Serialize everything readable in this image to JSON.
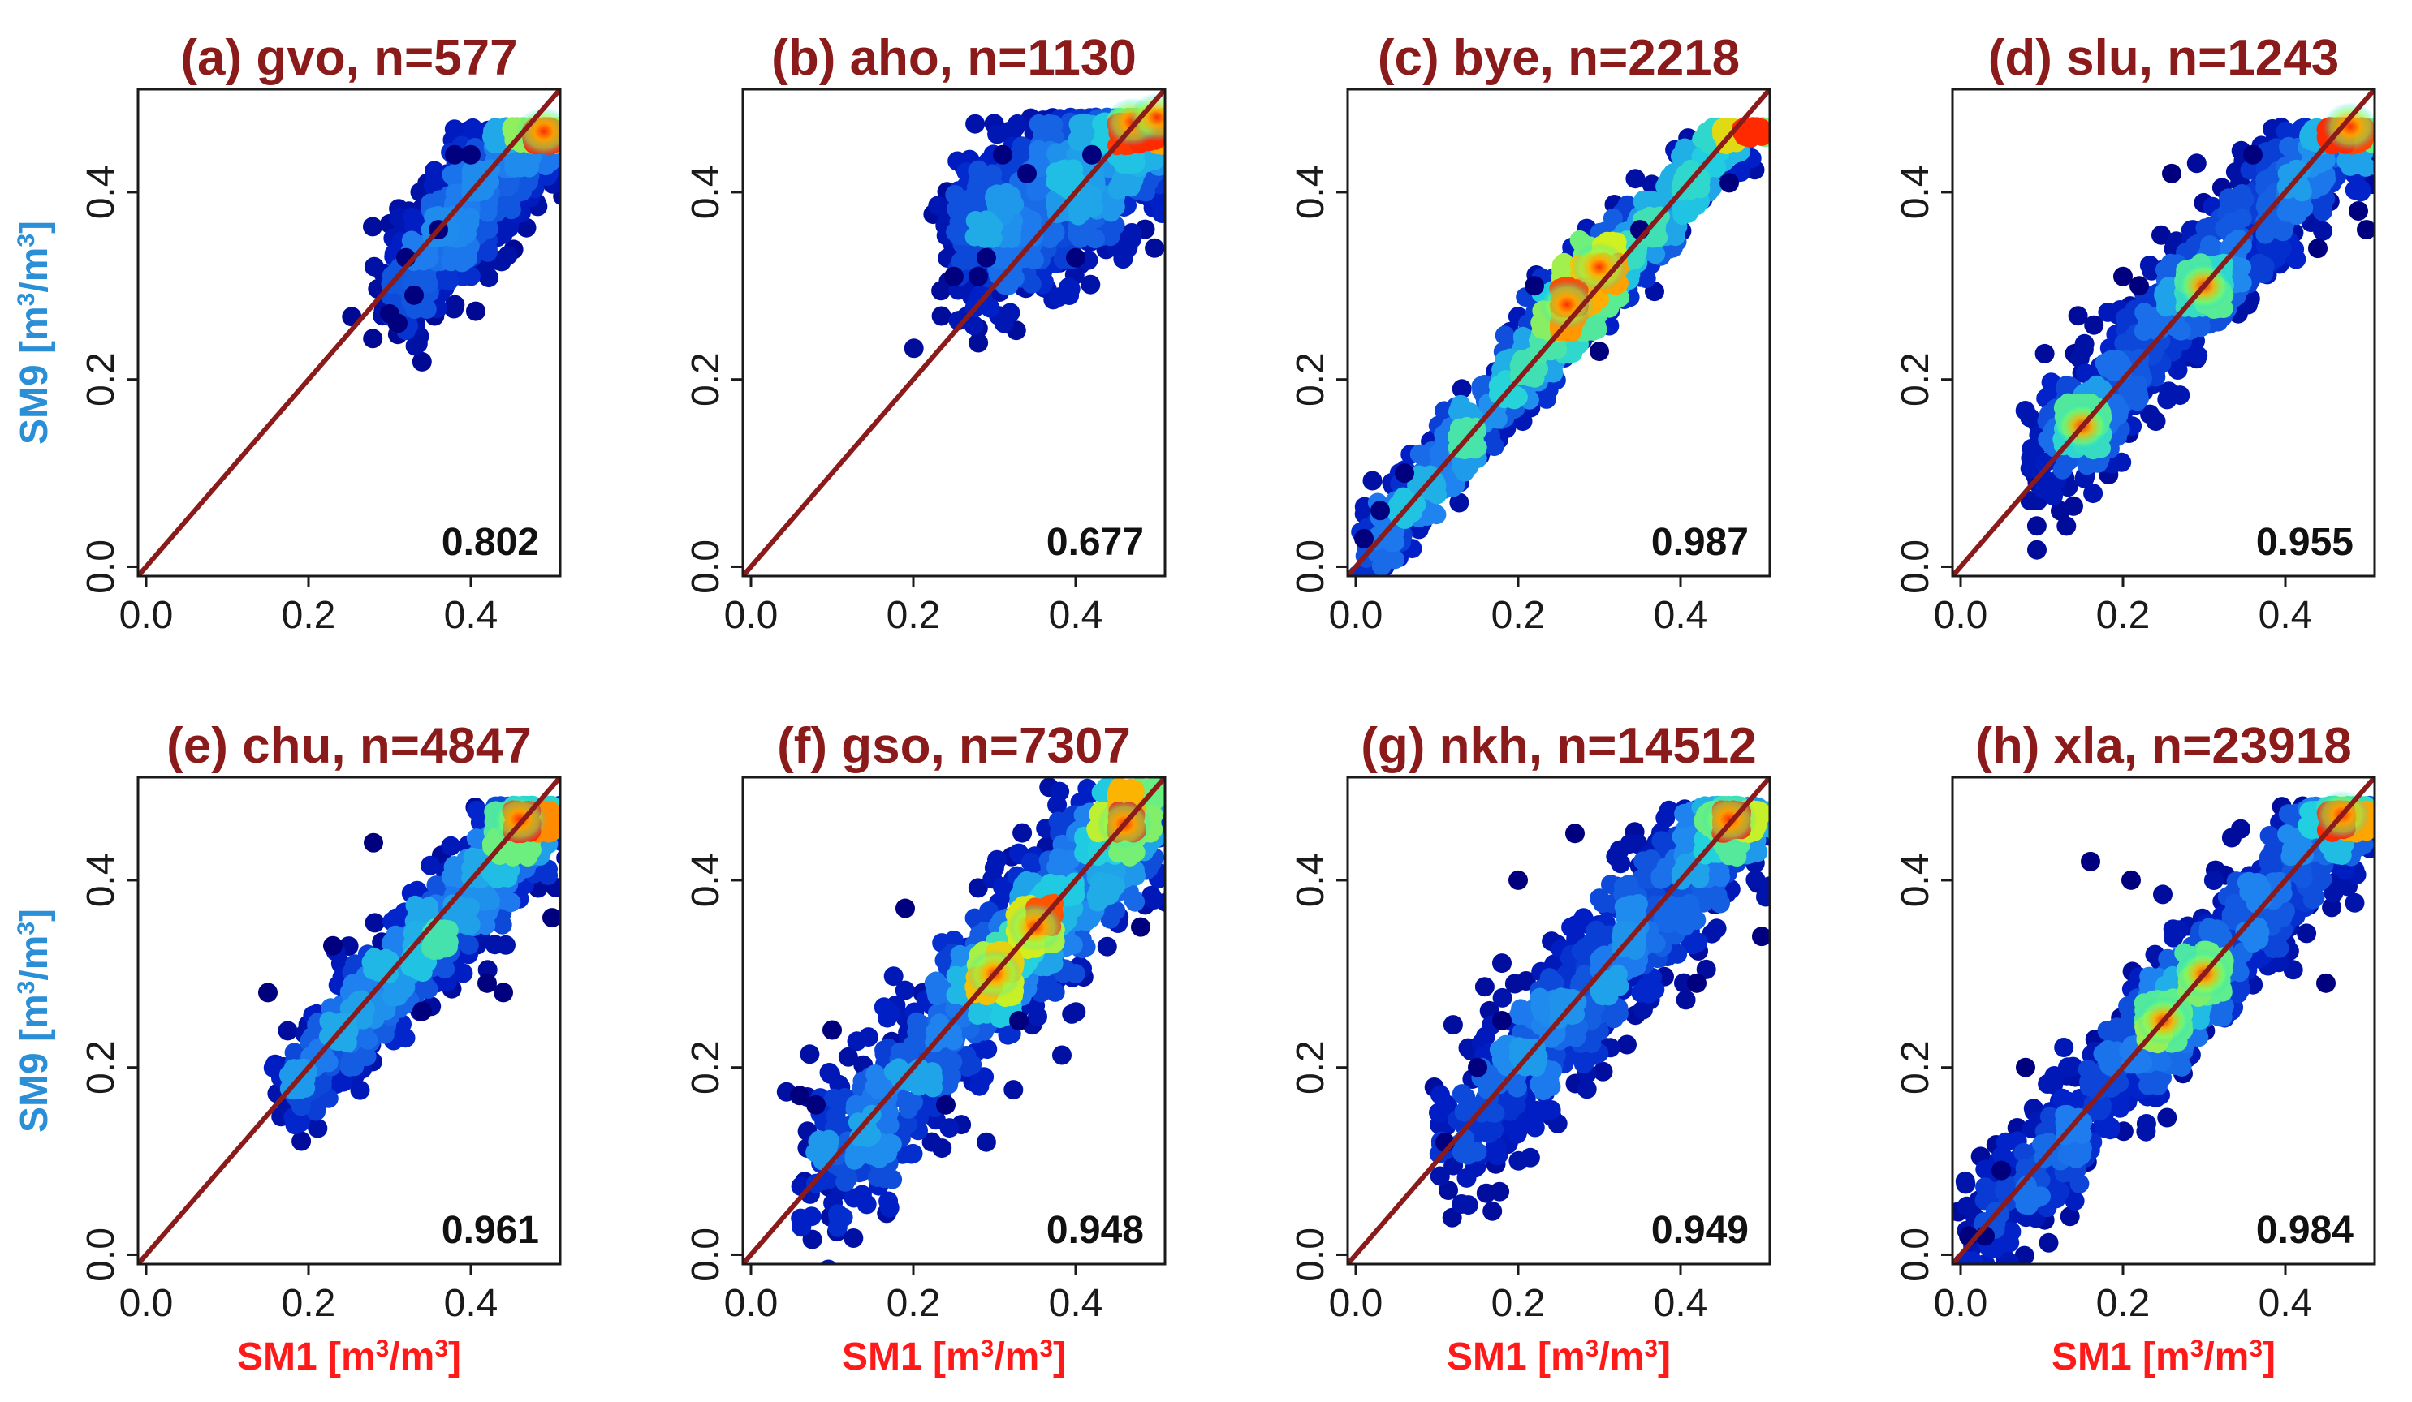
{
  "figure": {
    "xlabel_prefix": "SM1 [m",
    "ylabel_prefix": "SM9 [m",
    "unit_sup": "3",
    "unit_mid": "/m",
    "unit_end": "]"
  },
  "colors": {
    "title": "#8b1a1a",
    "one_to_one": "#8b1a1a",
    "xlabel": "#ff1a1a",
    "ylabel": "#2a8fd6",
    "axis": "#1a1a1a",
    "density_low": "#00007f",
    "density_high": "#ff2a00"
  },
  "chart_data": [
    {
      "type": "scatter",
      "title": "(a) gvo, n=577",
      "site": "gvo",
      "n": 577,
      "r": "0.802",
      "xlabel": "SM1 [m³/m³]",
      "ylabel": "SM9 [m³/m³]",
      "xlim": [
        -0.01,
        0.51
      ],
      "ylim": [
        -0.01,
        0.51
      ],
      "xticks": [
        "0.0",
        "0.2",
        "0.4"
      ],
      "yticks": [
        "0.0",
        "0.2",
        "0.4"
      ],
      "reference_line": "1:1",
      "cloud": {
        "x_min": 0.3,
        "x_max": 0.51,
        "cap": 0.47,
        "slope": 1.0,
        "intercept": -0.01,
        "spread": 0.035
      },
      "hotspots": [
        [
          0.49,
          0.465
        ]
      ],
      "outliers": [
        [
          0.3,
          0.27
        ],
        [
          0.31,
          0.26
        ],
        [
          0.33,
          0.29
        ],
        [
          0.32,
          0.33
        ],
        [
          0.36,
          0.36
        ],
        [
          0.38,
          0.44
        ],
        [
          0.4,
          0.44
        ]
      ]
    },
    {
      "type": "scatter",
      "title": "(b) aho, n=1130",
      "site": "aho",
      "n": 1130,
      "r": "0.677",
      "xlabel": "SM1 [m³/m³]",
      "ylabel": "SM9 [m³/m³]",
      "xlim": [
        -0.01,
        0.51
      ],
      "ylim": [
        -0.01,
        0.51
      ],
      "xticks": [
        "0.0",
        "0.2",
        "0.4"
      ],
      "yticks": [
        "0.0",
        "0.2",
        "0.4"
      ],
      "reference_line": "1:1",
      "cloud": {
        "x_min": 0.25,
        "x_max": 0.51,
        "cap": 0.48,
        "slope": 0.5,
        "intercept": 0.21,
        "spread": 0.045
      },
      "hotspots": [
        [
          0.47,
          0.475
        ],
        [
          0.5,
          0.48
        ]
      ],
      "outliers": [
        [
          0.25,
          0.31
        ],
        [
          0.28,
          0.31
        ],
        [
          0.29,
          0.33
        ],
        [
          0.31,
          0.44
        ],
        [
          0.34,
          0.42
        ],
        [
          0.4,
          0.33
        ],
        [
          0.42,
          0.44
        ]
      ]
    },
    {
      "type": "scatter",
      "title": "(c) bye, n=2218",
      "site": "bye",
      "n": 2218,
      "r": "0.987",
      "xlabel": "SM1 [m³/m³]",
      "ylabel": "SM9 [m³/m³]",
      "xlim": [
        -0.01,
        0.51
      ],
      "ylim": [
        -0.01,
        0.51
      ],
      "xticks": [
        "0.0",
        "0.2",
        "0.4"
      ],
      "yticks": [
        "0.0",
        "0.2",
        "0.4"
      ],
      "reference_line": "1:1",
      "cloud": {
        "x_min": 0.0,
        "x_max": 0.51,
        "cap": 0.47,
        "slope": 1.0,
        "intercept": 0.0,
        "spread": 0.022
      },
      "hotspots": [
        [
          0.26,
          0.28
        ],
        [
          0.3,
          0.32
        ]
      ],
      "outliers": [
        [
          0.01,
          0.03
        ],
        [
          0.03,
          0.06
        ],
        [
          0.06,
          0.1
        ],
        [
          0.22,
          0.3
        ],
        [
          0.3,
          0.23
        ],
        [
          0.35,
          0.36
        ],
        [
          0.46,
          0.41
        ]
      ]
    },
    {
      "type": "scatter",
      "title": "(d) slu, n=1243",
      "site": "slu",
      "n": 1243,
      "r": "0.955",
      "xlabel": "SM1 [m³/m³]",
      "ylabel": "SM9 [m³/m³]",
      "xlim": [
        -0.01,
        0.51
      ],
      "ylim": [
        -0.01,
        0.51
      ],
      "xticks": [
        "0.0",
        "0.2",
        "0.4"
      ],
      "yticks": [
        "0.0",
        "0.2",
        "0.4"
      ],
      "reference_line": "1:1",
      "cloud": {
        "x_min": 0.09,
        "x_max": 0.51,
        "cap": 0.47,
        "slope": 0.95,
        "intercept": 0.02,
        "spread": 0.035
      },
      "hotspots": [
        [
          0.3,
          0.3
        ],
        [
          0.48,
          0.47
        ],
        [
          0.15,
          0.15
        ]
      ],
      "outliers": [
        [
          0.2,
          0.31
        ],
        [
          0.22,
          0.3
        ],
        [
          0.26,
          0.42
        ],
        [
          0.36,
          0.44
        ],
        [
          0.44,
          0.34
        ],
        [
          0.49,
          0.38
        ],
        [
          0.5,
          0.36
        ]
      ]
    },
    {
      "type": "scatter",
      "title": "(e) chu, n=4847",
      "site": "chu",
      "n": 4847,
      "r": "0.961",
      "xlabel": "SM1 [m³/m³]",
      "ylabel": "SM9 [m³/m³]",
      "xlim": [
        -0.01,
        0.51
      ],
      "ylim": [
        -0.01,
        0.51
      ],
      "xticks": [
        "0.0",
        "0.2",
        "0.4"
      ],
      "yticks": [
        "0.0",
        "0.2",
        "0.4"
      ],
      "reference_line": "1:1",
      "cloud": {
        "x_min": 0.17,
        "x_max": 0.51,
        "cap": 0.48,
        "slope": 0.95,
        "intercept": 0.005,
        "spread": 0.03
      },
      "hotspots": [
        [
          0.46,
          0.465
        ]
      ],
      "outliers": [
        [
          0.15,
          0.28
        ],
        [
          0.23,
          0.33
        ],
        [
          0.28,
          0.44
        ],
        [
          0.34,
          0.26
        ],
        [
          0.42,
          0.29
        ],
        [
          0.44,
          0.28
        ],
        [
          0.5,
          0.36
        ]
      ]
    },
    {
      "type": "scatter",
      "title": "(f) gso, n=7307",
      "site": "gso",
      "n": 7307,
      "r": "0.948",
      "xlabel": "SM1 [m³/m³]",
      "ylabel": "SM9 [m³/m³]",
      "xlim": [
        -0.01,
        0.51
      ],
      "ylim": [
        -0.01,
        0.51
      ],
      "xticks": [
        "0.0",
        "0.2",
        "0.4"
      ],
      "yticks": [
        "0.0",
        "0.2",
        "0.4"
      ],
      "reference_line": "1:1",
      "cloud": {
        "x_min": 0.07,
        "x_max": 0.51,
        "cap": 0.5,
        "slope": 0.95,
        "intercept": 0.01,
        "spread": 0.045
      },
      "hotspots": [
        [
          0.3,
          0.3
        ],
        [
          0.35,
          0.35
        ],
        [
          0.46,
          0.46
        ]
      ],
      "outliers": [
        [
          0.06,
          0.17
        ],
        [
          0.08,
          0.16
        ],
        [
          0.1,
          0.24
        ],
        [
          0.19,
          0.37
        ],
        [
          0.24,
          0.16
        ],
        [
          0.33,
          0.25
        ],
        [
          0.48,
          0.35
        ]
      ]
    },
    {
      "type": "scatter",
      "title": "(g) nkh, n=14512",
      "site": "nkh",
      "n": 14512,
      "r": "0.949",
      "xlabel": "SM1 [m³/m³]",
      "ylabel": "SM9 [m³/m³]",
      "xlim": [
        -0.01,
        0.51
      ],
      "ylim": [
        -0.01,
        0.51
      ],
      "xticks": [
        "0.0",
        "0.2",
        "0.4"
      ],
      "yticks": [
        "0.0",
        "0.2",
        "0.4"
      ],
      "reference_line": "1:1",
      "cloud": {
        "x_min": 0.11,
        "x_max": 0.51,
        "cap": 0.48,
        "slope": 1.0,
        "intercept": 0.0,
        "spread": 0.04
      },
      "hotspots": [
        [
          0.46,
          0.465
        ]
      ],
      "outliers": [
        [
          0.11,
          0.12
        ],
        [
          0.15,
          0.2
        ],
        [
          0.18,
          0.25
        ],
        [
          0.2,
          0.4
        ],
        [
          0.27,
          0.45
        ],
        [
          0.42,
          0.29
        ],
        [
          0.5,
          0.34
        ]
      ]
    },
    {
      "type": "scatter",
      "title": "(h) xla, n=23918",
      "site": "xla",
      "n": 23918,
      "r": "0.984",
      "xlabel": "SM1 [m³/m³]",
      "ylabel": "SM9 [m³/m³]",
      "xlim": [
        -0.01,
        0.51
      ],
      "ylim": [
        -0.01,
        0.51
      ],
      "xticks": [
        "0.0",
        "0.2",
        "0.4"
      ],
      "yticks": [
        "0.0",
        "0.2",
        "0.4"
      ],
      "reference_line": "1:1",
      "cloud": {
        "x_min": 0.0,
        "x_max": 0.51,
        "cap": 0.48,
        "slope": 1.0,
        "intercept": 0.0,
        "spread": 0.035
      },
      "hotspots": [
        [
          0.25,
          0.25
        ],
        [
          0.3,
          0.3
        ],
        [
          0.47,
          0.47
        ]
      ],
      "outliers": [
        [
          0.01,
          0.02
        ],
        [
          0.03,
          0.02
        ],
        [
          0.05,
          0.09
        ],
        [
          0.08,
          0.2
        ],
        [
          0.16,
          0.42
        ],
        [
          0.21,
          0.4
        ],
        [
          0.45,
          0.29
        ]
      ]
    }
  ]
}
